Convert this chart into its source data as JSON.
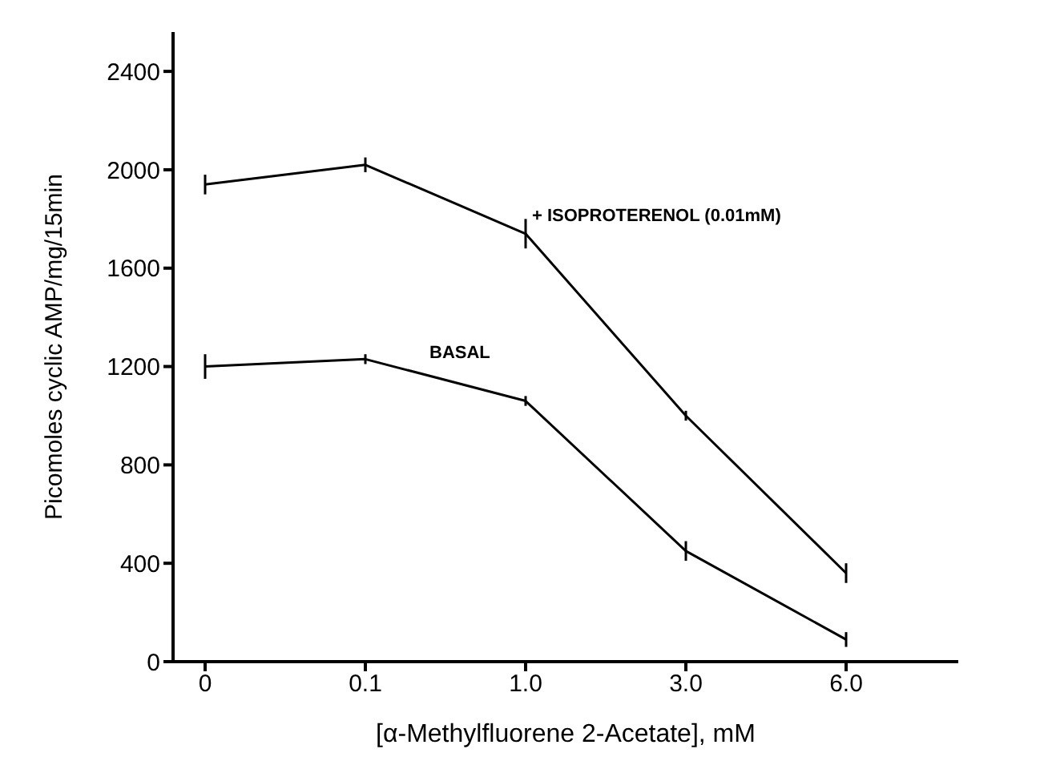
{
  "chart_data": {
    "type": "line",
    "xlabel": "[α-Methylfluorene 2-Acetate], mM",
    "ylabel": "Picomoles cyclic AMP/mg/15min",
    "categories": [
      "0",
      "0.1",
      "1.0",
      "3.0",
      "6.0"
    ],
    "series": [
      {
        "name": "+ ISOPROTERENOL (0.01mM)",
        "color": "#000000",
        "values": [
          1940,
          2020,
          1740,
          1000,
          360
        ],
        "errors": [
          40,
          30,
          60,
          20,
          40
        ]
      },
      {
        "name": "BASAL",
        "color": "#000000",
        "values": [
          1200,
          1230,
          1060,
          450,
          90
        ],
        "errors": [
          50,
          20,
          20,
          40,
          30
        ]
      }
    ],
    "ylim": [
      0,
      2560
    ],
    "yticks": [
      0,
      400,
      800,
      1200,
      1600,
      2000,
      2400
    ],
    "grid": false,
    "legend": false,
    "marker": "none",
    "line_style": "solid"
  }
}
